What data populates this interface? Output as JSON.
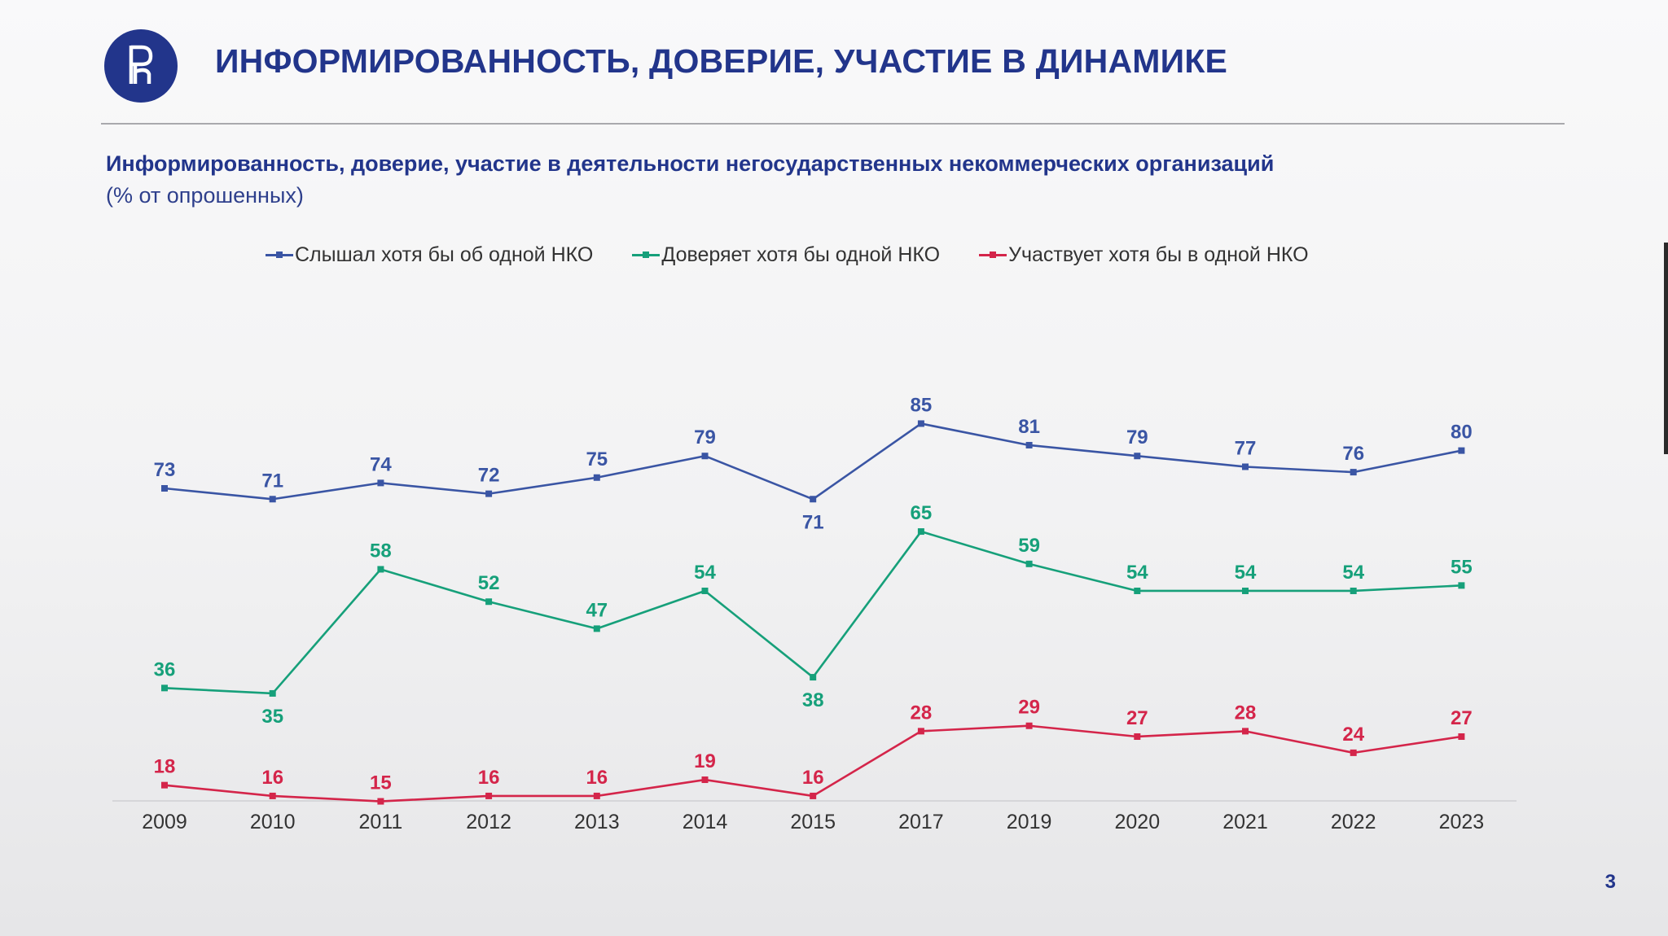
{
  "slide": {
    "title": "ИНФОРМИРОВАННОСТЬ, ДОВЕРИЕ, УЧАСТИЕ В ДИНАМИКЕ",
    "page_number": "3",
    "logo_icon": "hse-university-logo-icon",
    "colors": {
      "brand": "#22358b",
      "background": "#f4f4f5"
    }
  },
  "chart_data": {
    "type": "line",
    "title": "Информированность, доверие, участие в деятельности негосударственных некоммерческих организаций",
    "subtitle": "(% от опрошенных)",
    "categories": [
      "2009",
      "2010",
      "2011",
      "2012",
      "2013",
      "2014",
      "2015",
      "2017",
      "2019",
      "2020",
      "2021",
      "2022",
      "2023"
    ],
    "ylim": [
      0,
      100
    ],
    "grid": false,
    "legend_position": "top",
    "data_labels": true,
    "series": [
      {
        "name": "Слышал хотя бы об одной НКО",
        "color": "#3a55a4",
        "values": [
          73,
          71,
          74,
          72,
          75,
          79,
          71,
          85,
          81,
          79,
          77,
          76,
          80
        ],
        "label_below": [
          false,
          false,
          false,
          false,
          false,
          false,
          true,
          false,
          false,
          false,
          false,
          false,
          false
        ]
      },
      {
        "name": "Доверяет хотя бы одной НКО",
        "color": "#16a07a",
        "values": [
          36,
          35,
          58,
          52,
          47,
          54,
          38,
          65,
          59,
          54,
          54,
          54,
          55
        ],
        "label_below": [
          false,
          true,
          false,
          false,
          false,
          false,
          true,
          false,
          false,
          false,
          false,
          false,
          false
        ]
      },
      {
        "name": "Участвует хотя бы в одной НКО",
        "color": "#d4254a",
        "values": [
          18,
          16,
          15,
          16,
          16,
          19,
          16,
          28,
          29,
          27,
          28,
          24,
          27
        ],
        "label_below": [
          false,
          false,
          false,
          false,
          false,
          false,
          false,
          false,
          false,
          false,
          false,
          false,
          false
        ]
      }
    ]
  }
}
